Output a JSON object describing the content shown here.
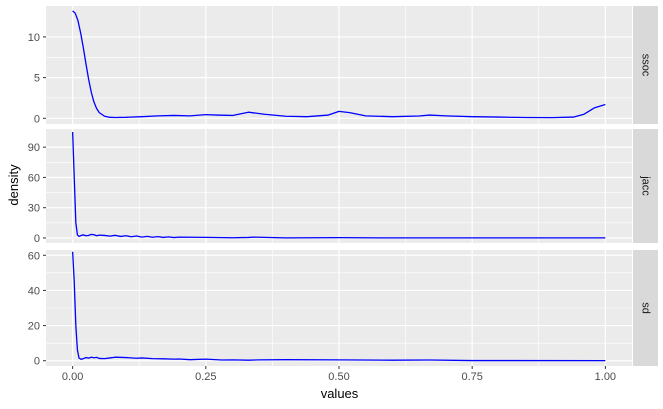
{
  "chart_data": {
    "type": "line",
    "xlabel": "values",
    "ylabel": "density",
    "xlim": [
      -0.05,
      1.05
    ],
    "x_ticks": [
      0,
      0.25,
      0.5,
      0.75,
      1
    ],
    "x_tick_labels": [
      "0.00",
      "0.25",
      "0.50",
      "0.75",
      "1.00"
    ],
    "grid": true,
    "line_color": "#0000ff",
    "panel_bg": "#ebebeb",
    "strip_bg": "#d9d9d9",
    "facets": [
      {
        "strip": "ssoc",
        "ylim": [
          -0.7,
          13.8
        ],
        "y_ticks": [
          0,
          5,
          10
        ],
        "y_tick_labels": [
          "0",
          "5",
          "10"
        ],
        "x": [
          0,
          0.005,
          0.01,
          0.015,
          0.02,
          0.025,
          0.03,
          0.035,
          0.04,
          0.045,
          0.05,
          0.06,
          0.07,
          0.08,
          0.1,
          0.13,
          0.16,
          0.19,
          0.22,
          0.25,
          0.27,
          0.3,
          0.33,
          0.36,
          0.4,
          0.44,
          0.48,
          0.5,
          0.52,
          0.55,
          0.6,
          0.65,
          0.67,
          0.7,
          0.75,
          0.8,
          0.85,
          0.9,
          0.94,
          0.96,
          0.98,
          1.0
        ],
        "y": [
          13.2,
          12.9,
          12.0,
          10.5,
          8.7,
          6.7,
          4.8,
          3.2,
          2.0,
          1.2,
          0.7,
          0.25,
          0.12,
          0.1,
          0.12,
          0.2,
          0.3,
          0.35,
          0.3,
          0.45,
          0.4,
          0.35,
          0.75,
          0.5,
          0.25,
          0.2,
          0.4,
          0.85,
          0.7,
          0.3,
          0.2,
          0.28,
          0.4,
          0.3,
          0.2,
          0.15,
          0.1,
          0.08,
          0.15,
          0.5,
          1.3,
          1.7
        ]
      },
      {
        "strip": "jacc",
        "ylim": [
          -5,
          108
        ],
        "y_ticks": [
          0,
          30,
          60,
          90
        ],
        "y_tick_labels": [
          "0",
          "30",
          "60",
          "90"
        ],
        "x": [
          0,
          0.003,
          0.006,
          0.009,
          0.012,
          0.016,
          0.02,
          0.025,
          0.03,
          0.035,
          0.04,
          0.045,
          0.05,
          0.06,
          0.07,
          0.08,
          0.09,
          0.1,
          0.11,
          0.12,
          0.13,
          0.14,
          0.15,
          0.16,
          0.17,
          0.18,
          0.19,
          0.2,
          0.25,
          0.3,
          0.33,
          0.34,
          0.4,
          0.5,
          0.6,
          0.75,
          1.0
        ],
        "y": [
          105,
          60,
          15,
          3,
          1.5,
          2.5,
          3,
          2.2,
          2.5,
          3.5,
          3.2,
          2.2,
          2.8,
          2.5,
          1.8,
          2.6,
          1.5,
          2.2,
          1.2,
          1.9,
          0.8,
          1.6,
          0.7,
          1.3,
          0.5,
          1.1,
          0.4,
          0.8,
          0.6,
          0.2,
          0.5,
          0.8,
          0.1,
          0.3,
          0.05,
          0.05,
          0.05
        ]
      },
      {
        "strip": "sd",
        "ylim": [
          -3,
          63
        ],
        "y_ticks": [
          0,
          20,
          40,
          60
        ],
        "y_tick_labels": [
          "0",
          "20",
          "40",
          "60"
        ],
        "x": [
          0,
          0.003,
          0.006,
          0.009,
          0.012,
          0.016,
          0.02,
          0.025,
          0.03,
          0.035,
          0.04,
          0.045,
          0.05,
          0.06,
          0.07,
          0.08,
          0.1,
          0.12,
          0.13,
          0.15,
          0.17,
          0.19,
          0.2,
          0.22,
          0.25,
          0.28,
          0.3,
          0.33,
          0.35,
          0.4,
          0.5,
          0.6,
          0.67,
          0.75,
          1.0
        ],
        "y": [
          62,
          45,
          20,
          6,
          1.5,
          0.8,
          1.2,
          1.8,
          1.5,
          2.0,
          1.7,
          1.9,
          1.3,
          1.2,
          1.6,
          2.0,
          1.8,
          1.4,
          1.6,
          1.2,
          1.1,
          0.9,
          1.0,
          0.6,
          0.9,
          0.4,
          0.5,
          0.3,
          0.5,
          0.6,
          0.5,
          0.3,
          0.4,
          0.1,
          0.05
        ]
      }
    ]
  }
}
